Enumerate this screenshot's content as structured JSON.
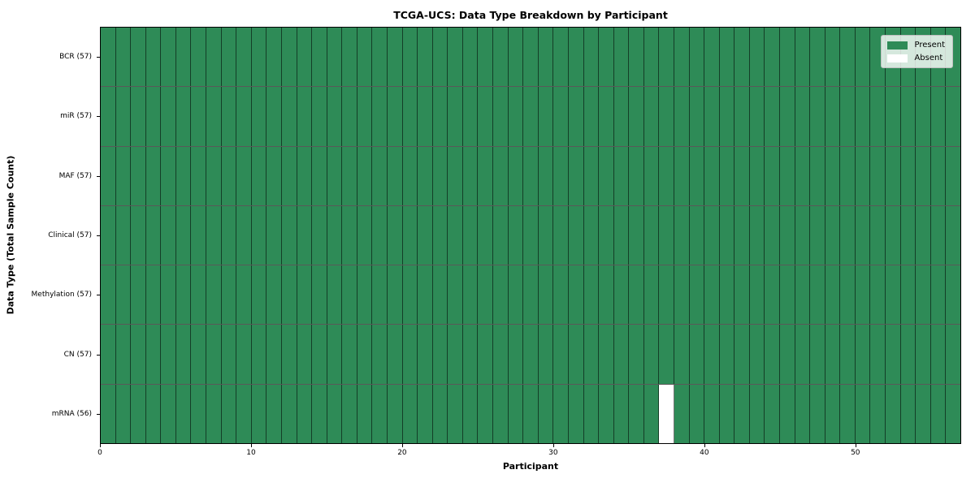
{
  "chart_data": {
    "type": "heatmap",
    "title": "TCGA-UCS: Data Type Breakdown by Participant",
    "xlabel": "Participant",
    "ylabel": "Data Type (Total Sample Count)",
    "n_participants": 57,
    "x_ticks": [
      0,
      10,
      20,
      30,
      40,
      50
    ],
    "xlim": [
      0,
      57
    ],
    "grid": true,
    "legend_position": "upper right",
    "rows": [
      {
        "label": "BCR (57)",
        "data_type": "BCR",
        "total_sample_count": 57,
        "absent_participants": []
      },
      {
        "label": "miR (57)",
        "data_type": "miR",
        "total_sample_count": 57,
        "absent_participants": []
      },
      {
        "label": "MAF (57)",
        "data_type": "MAF",
        "total_sample_count": 57,
        "absent_participants": []
      },
      {
        "label": "Clinical (57)",
        "data_type": "Clinical",
        "total_sample_count": 57,
        "absent_participants": []
      },
      {
        "label": "Methylation (57)",
        "data_type": "Methylation",
        "total_sample_count": 57,
        "absent_participants": []
      },
      {
        "label": "CN (57)",
        "data_type": "CN",
        "total_sample_count": 57,
        "absent_participants": []
      },
      {
        "label": "mRNA (56)",
        "data_type": "mRNA",
        "total_sample_count": 56,
        "absent_participants": [
          37
        ]
      }
    ],
    "legend": [
      {
        "label": "Present",
        "color": "#2e8b57"
      },
      {
        "label": "Absent",
        "color": "#ffffff"
      }
    ],
    "colors": {
      "present": "#2e8b57",
      "absent": "#ffffff",
      "cell_border": "rgba(0,0,0,0.55)",
      "spine": "#000000"
    }
  }
}
